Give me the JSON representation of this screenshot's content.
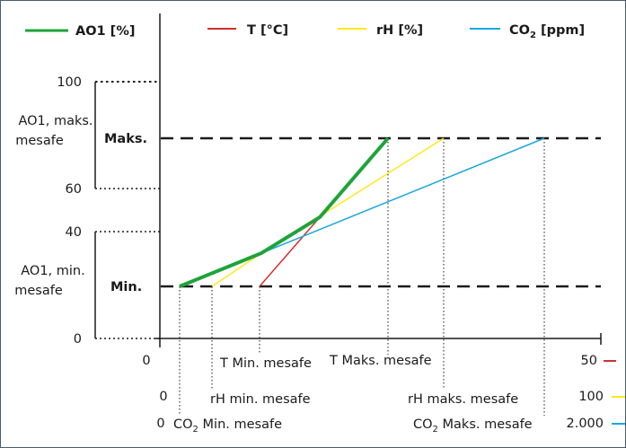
{
  "legend": {
    "ao1": "AO1 [%]",
    "t": "T [°C]",
    "rh": "rH [%]",
    "co2_main": "CO",
    "co2_sub": "2",
    "co2_unit": " [ppm]"
  },
  "colors": {
    "ao1": "#1ea33a",
    "t": "#d32f2f",
    "rh": "#ffe81c",
    "co2": "#1aa7e0",
    "axis": "#1a1a1a"
  },
  "y_axis": {
    "tick_100": "100",
    "tick_60": "60",
    "tick_40": "40",
    "tick_0": "0",
    "maks_range": "AO1, maks.",
    "maks_range_2": "mesafe",
    "min_range": "AO1, min.",
    "min_range_2": "mesafe",
    "maks": "Maks.",
    "min": "Min."
  },
  "x_axis": {
    "row_t": {
      "start": "0",
      "end": "50"
    },
    "row_rh": {
      "start": "0",
      "end": "100"
    },
    "row_co2": {
      "start": "0",
      "end": "2.000"
    },
    "extra_50": "50",
    "t_min": "T Min. mesafe",
    "t_max": "T Maks. mesafe",
    "rh_min": "rH min. mesafe",
    "rh_max": "rH maks. mesafe",
    "co2_min_main": "CO",
    "co2_min_sub": "2",
    "co2_min_rest": " Min. mesafe",
    "co2_max_main": "CO",
    "co2_max_sub": "2",
    "co2_max_rest": " Maks. mesafe"
  },
  "chart_data": {
    "type": "line",
    "ylim": [
      0,
      100
    ],
    "y_ticks": [
      "0",
      "40",
      "60",
      "100"
    ],
    "levels": {
      "min": "Min.",
      "maks": "Maks."
    },
    "series": [
      {
        "name": "T [°C]",
        "points": [
          "Min. @ T Min. mesafe",
          "Maks. @ T Maks. mesafe"
        ]
      },
      {
        "name": "rH [%]",
        "points": [
          "Min. @ rH min. mesafe",
          "Maks. @ rH maks. mesafe"
        ]
      },
      {
        "name": "CO2 [ppm]",
        "points": [
          "Min. @ CO2 Min. mesafe",
          "Maks. @ CO2 Maks. mesafe"
        ]
      },
      {
        "name": "AO1 [%]",
        "points": [
          "Min.",
          "Maks."
        ]
      }
    ]
  }
}
